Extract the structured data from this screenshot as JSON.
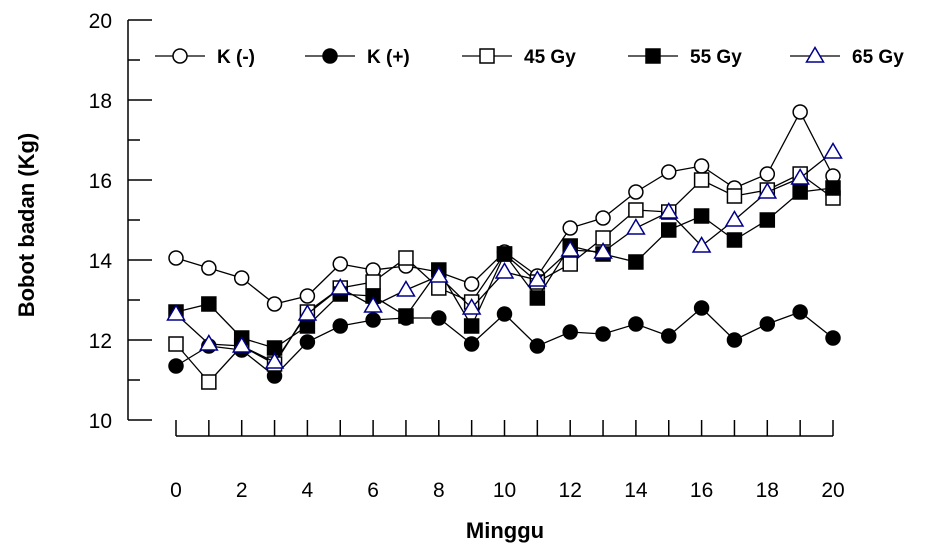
{
  "chart_data": {
    "type": "line",
    "title": "",
    "xlabel": "Minggu",
    "ylabel": "Bobot badan (Kg)",
    "xlim": [
      0,
      20
    ],
    "ylim": [
      10,
      20
    ],
    "x_ticks": [
      0,
      2,
      4,
      6,
      8,
      10,
      12,
      14,
      16,
      18,
      20
    ],
    "y_ticks": [
      10,
      12,
      14,
      16,
      18,
      20
    ],
    "grid": false,
    "legend_position": "top",
    "x": [
      0,
      1,
      2,
      3,
      4,
      5,
      6,
      7,
      8,
      9,
      10,
      11,
      12,
      13,
      14,
      15,
      16,
      17,
      18,
      19,
      20
    ],
    "series": [
      {
        "name": "K (-)",
        "marker": "circle-open",
        "values": [
          14.05,
          13.8,
          13.55,
          12.9,
          13.1,
          13.9,
          13.75,
          13.85,
          13.7,
          13.4,
          14.2,
          13.6,
          14.8,
          15.05,
          15.7,
          16.2,
          16.35,
          15.8,
          16.15,
          17.7,
          16.1
        ]
      },
      {
        "name": "K (+)",
        "marker": "circle-filled",
        "values": [
          11.35,
          11.85,
          11.75,
          11.1,
          11.95,
          12.35,
          12.5,
          12.55,
          12.55,
          11.9,
          12.65,
          11.85,
          12.2,
          12.15,
          12.4,
          12.1,
          12.8,
          12.0,
          12.4,
          12.7,
          12.05
        ]
      },
      {
        "name": "45 Gy",
        "marker": "square-open",
        "values": [
          11.9,
          10.95,
          11.85,
          11.4,
          12.7,
          13.3,
          13.45,
          14.05,
          13.3,
          12.95,
          14.15,
          13.45,
          13.9,
          14.55,
          15.25,
          15.2,
          16.0,
          15.6,
          15.75,
          16.15,
          15.55
        ]
      },
      {
        "name": "55 Gy",
        "marker": "square-filled",
        "values": [
          12.7,
          12.9,
          12.05,
          11.8,
          12.35,
          13.15,
          13.1,
          12.6,
          13.75,
          12.35,
          14.15,
          13.05,
          14.35,
          14.15,
          13.95,
          14.75,
          15.1,
          14.5,
          15.0,
          15.7,
          15.8
        ]
      },
      {
        "name": "65 Gy",
        "marker": "triangle-open",
        "values": [
          12.65,
          11.9,
          11.85,
          11.45,
          12.65,
          13.3,
          12.85,
          13.25,
          13.6,
          12.8,
          13.7,
          13.5,
          14.25,
          14.2,
          14.8,
          15.2,
          14.35,
          15.0,
          15.7,
          16.05,
          16.7
        ]
      }
    ]
  },
  "colors": {
    "axis": "#000000",
    "line": "#000000",
    "triangle_marker": "#00008b",
    "background": "#ffffff"
  }
}
